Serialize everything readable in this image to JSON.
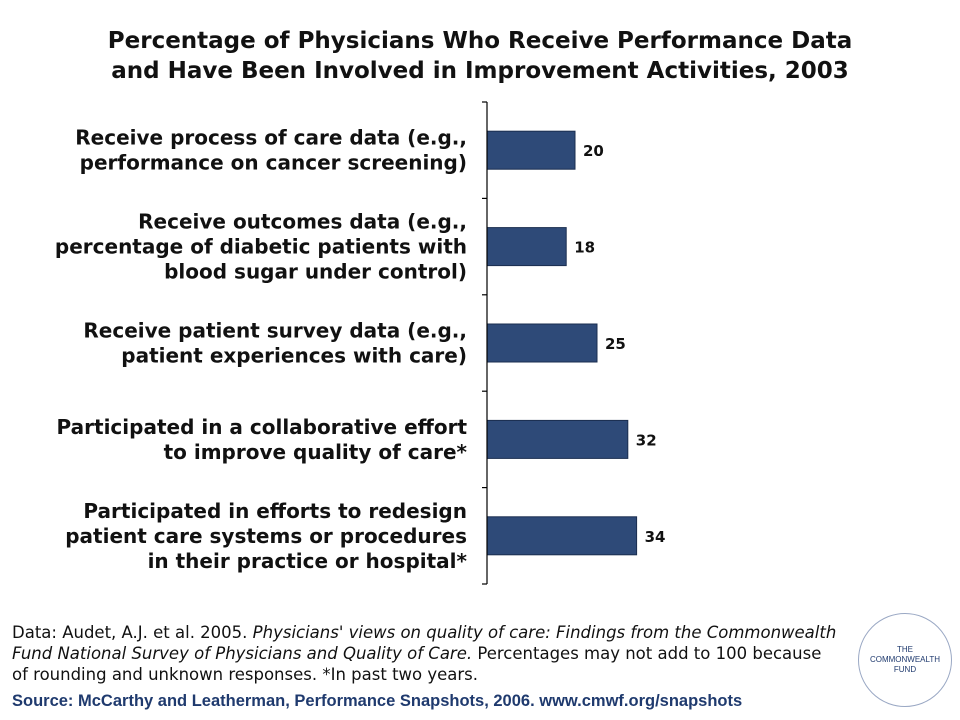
{
  "title": {
    "line1": "Percentage of Physicians Who Receive Performance Data",
    "line2": "and Have Been Involved in Improvement Activities, 2003"
  },
  "chart_data": {
    "type": "bar",
    "orientation": "horizontal",
    "categories": [
      [
        "Receive process of care data (e.g.,",
        "performance on cancer screening)"
      ],
      [
        "Receive outcomes data (e.g.,",
        "percentage of diabetic patients with",
        "blood sugar under control)"
      ],
      [
        "Receive patient survey data (e.g.,",
        "patient experiences with care)"
      ],
      [
        "Participated in a collaborative effort",
        "to improve quality of care*"
      ],
      [
        "Participated in efforts to redesign",
        "patient care systems or procedures",
        "in their practice or hospital*"
      ]
    ],
    "values": [
      20,
      18,
      25,
      32,
      34
    ],
    "value_labels": [
      "20",
      "18",
      "25",
      "32",
      "34"
    ],
    "xlim": [
      0,
      100
    ],
    "grid": false,
    "legend": "none",
    "bar_color": "#2e4a78"
  },
  "notes": {
    "prefix": "Data: Audet, A.J. et al. 2005. ",
    "italic": "Physicians' views on quality of care: Findings from the Commonwealth Fund National Survey of Physicians and Quality of Care.",
    "suffix": " Percentages may not add to 100 because of rounding and unknown responses. *In past two years."
  },
  "source": "Source: McCarthy and Leatherman, Performance Snapshots, 2006. www.cmwf.org/snapshots",
  "logo": {
    "line1": "THE",
    "line2": "COMMONWEALTH",
    "line3": "FUND"
  }
}
